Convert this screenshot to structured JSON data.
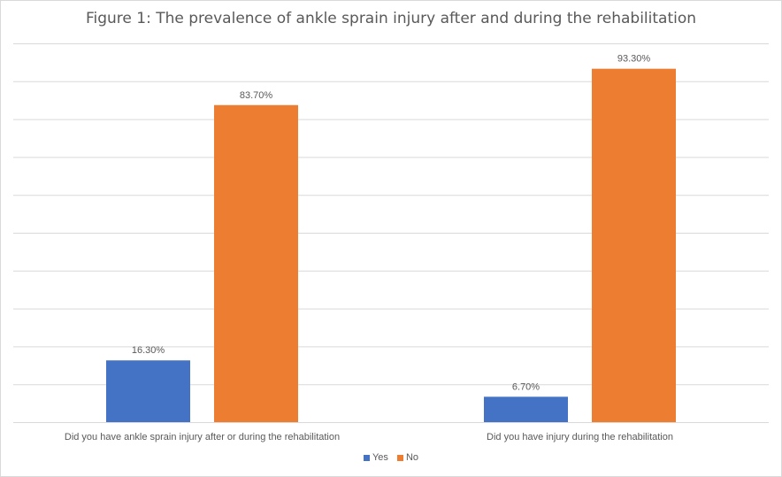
{
  "chart_data": {
    "type": "bar",
    "title": "Figure 1: The prevalence of ankle sprain injury after and during the rehabilitation",
    "categories": [
      "Did you have ankle sprain injury after or during the rehabilitation",
      "Did you have injury during the rehabilitation"
    ],
    "series": [
      {
        "name": "Yes",
        "values": [
          16.3,
          6.7
        ],
        "labels": [
          "16.30%",
          "6.70%"
        ],
        "color": "#4472c4"
      },
      {
        "name": "No",
        "values": [
          83.7,
          93.3
        ],
        "labels": [
          "83.70%",
          "93.30%"
        ],
        "color": "#ed7d31"
      }
    ],
    "ylim": [
      0,
      100
    ],
    "y_axis_labels_visible": false,
    "grid": true,
    "legend_position": "bottom"
  }
}
